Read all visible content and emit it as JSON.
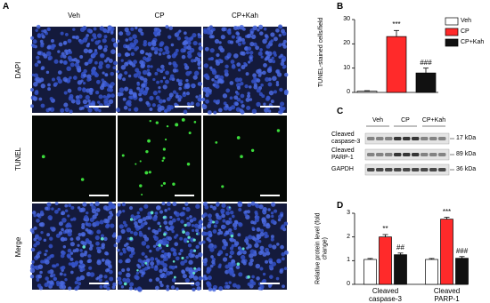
{
  "panel_a": {
    "label": "A",
    "columns": [
      "Veh",
      "CP",
      "CP+Kah"
    ],
    "rows": [
      "DAPI",
      "TUNEL",
      "Merge"
    ]
  },
  "blot": {
    "label": "C",
    "lanes": [
      "Veh",
      "CP",
      "CP+Kah"
    ],
    "rows": [
      {
        "name": "Cleaved caspase-3",
        "size": "17 kDa"
      },
      {
        "name": "Cleaved PARP-1",
        "size": "89 kDa"
      },
      {
        "name": "GAPDH",
        "size": "36 kDa"
      }
    ]
  },
  "chart_data": [
    {
      "type": "bar",
      "label": "B",
      "ylabel": "TUNEL-stained cells/field",
      "ylim": [
        0,
        30
      ],
      "yticks": [
        0,
        10,
        20,
        30
      ],
      "legend": "right",
      "series": [
        {
          "name": "Veh",
          "color": "#ffffff",
          "values": [
            0.5
          ],
          "errors": [
            0.2
          ]
        },
        {
          "name": "CP",
          "color": "#ff2a2a",
          "values": [
            23
          ],
          "errors": [
            2.5
          ],
          "annotations": [
            "***"
          ]
        },
        {
          "name": "CP+Kah",
          "color": "#111111",
          "values": [
            8
          ],
          "errors": [
            2
          ],
          "annotations": [
            "###"
          ]
        }
      ]
    },
    {
      "type": "bar",
      "label": "D",
      "ylabel": "Relative protein level (fold change)",
      "ylim": [
        0,
        3
      ],
      "yticks": [
        0,
        1,
        2,
        3
      ],
      "categories": [
        "Cleaved caspase-3",
        "Cleaved PARP-1"
      ],
      "series": [
        {
          "color": "#ffffff",
          "values": [
            1.05,
            1.05
          ],
          "errors": [
            0.04,
            0.04
          ]
        },
        {
          "color": "#ff2a2a",
          "values": [
            2.0,
            2.75
          ],
          "errors": [
            0.1,
            0.08
          ],
          "annotations": [
            "**",
            "***"
          ]
        },
        {
          "color": "#111111",
          "values": [
            1.25,
            1.1
          ],
          "errors": [
            0.07,
            0.07
          ],
          "annotations": [
            "##",
            "###"
          ]
        }
      ]
    }
  ]
}
